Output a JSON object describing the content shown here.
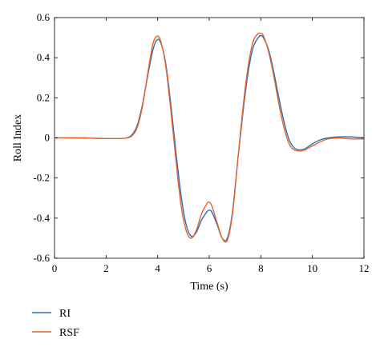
{
  "chart_data": {
    "type": "line",
    "xlabel": "Time (s)",
    "ylabel": "Roll Index",
    "xlim": [
      0,
      12
    ],
    "ylim": [
      -0.6,
      0.6
    ],
    "xticks": [
      0,
      2,
      4,
      6,
      8,
      10,
      12
    ],
    "yticks": [
      -0.6,
      -0.4,
      -0.2,
      0,
      0.2,
      0.4,
      0.6
    ],
    "ytick_labels": [
      "-0.6",
      "-0.4",
      "-0.2",
      "0",
      "0.2",
      "0.4",
      "0.6"
    ],
    "grid": false,
    "legend_placement": "bottom-left",
    "series": [
      {
        "name": "RI",
        "color": "#2a6fb5",
        "x": [
          0,
          1,
          2,
          2.5,
          2.8,
          3.0,
          3.2,
          3.4,
          3.6,
          3.8,
          3.95,
          4.1,
          4.3,
          4.5,
          4.7,
          4.9,
          5.1,
          5.3,
          5.5,
          5.7,
          5.9,
          6.0,
          6.1,
          6.3,
          6.5,
          6.7,
          6.9,
          7.1,
          7.3,
          7.5,
          7.7,
          7.9,
          8.0,
          8.1,
          8.3,
          8.5,
          8.7,
          8.9,
          9.1,
          9.3,
          9.5,
          9.7,
          10.0,
          10.3,
          10.6,
          11.0,
          11.5,
          12.0
        ],
        "values": [
          0,
          0,
          -0.003,
          -0.003,
          0.0,
          0.015,
          0.06,
          0.16,
          0.3,
          0.43,
          0.485,
          0.48,
          0.38,
          0.18,
          -0.06,
          -0.28,
          -0.43,
          -0.49,
          -0.47,
          -0.41,
          -0.37,
          -0.36,
          -0.37,
          -0.43,
          -0.5,
          -0.5,
          -0.37,
          -0.12,
          0.12,
          0.32,
          0.45,
          0.5,
          0.51,
          0.5,
          0.44,
          0.33,
          0.2,
          0.08,
          -0.01,
          -0.05,
          -0.06,
          -0.055,
          -0.03,
          -0.01,
          0.0,
          0.005,
          0.005,
          0.0
        ]
      },
      {
        "name": "RSF",
        "color": "#e8622a",
        "x": [
          0,
          1,
          2,
          2.5,
          2.8,
          3.0,
          3.2,
          3.4,
          3.6,
          3.8,
          3.95,
          4.1,
          4.3,
          4.5,
          4.7,
          4.9,
          5.1,
          5.3,
          5.5,
          5.7,
          5.9,
          6.0,
          6.1,
          6.3,
          6.5,
          6.7,
          6.9,
          7.1,
          7.3,
          7.5,
          7.7,
          7.9,
          8.0,
          8.1,
          8.3,
          8.5,
          8.7,
          8.9,
          9.1,
          9.3,
          9.5,
          9.7,
          10.0,
          10.3,
          10.6,
          11.0,
          11.5,
          12.0
        ],
        "values": [
          0,
          0,
          -0.003,
          -0.003,
          0.0,
          0.01,
          0.05,
          0.15,
          0.31,
          0.46,
          0.505,
          0.49,
          0.37,
          0.15,
          -0.1,
          -0.33,
          -0.46,
          -0.5,
          -0.46,
          -0.38,
          -0.33,
          -0.32,
          -0.34,
          -0.42,
          -0.5,
          -0.51,
          -0.38,
          -0.12,
          0.14,
          0.35,
          0.48,
          0.52,
          0.52,
          0.51,
          0.43,
          0.31,
          0.17,
          0.05,
          -0.03,
          -0.06,
          -0.065,
          -0.06,
          -0.04,
          -0.02,
          -0.005,
          0.0,
          -0.005,
          -0.005
        ]
      }
    ]
  }
}
